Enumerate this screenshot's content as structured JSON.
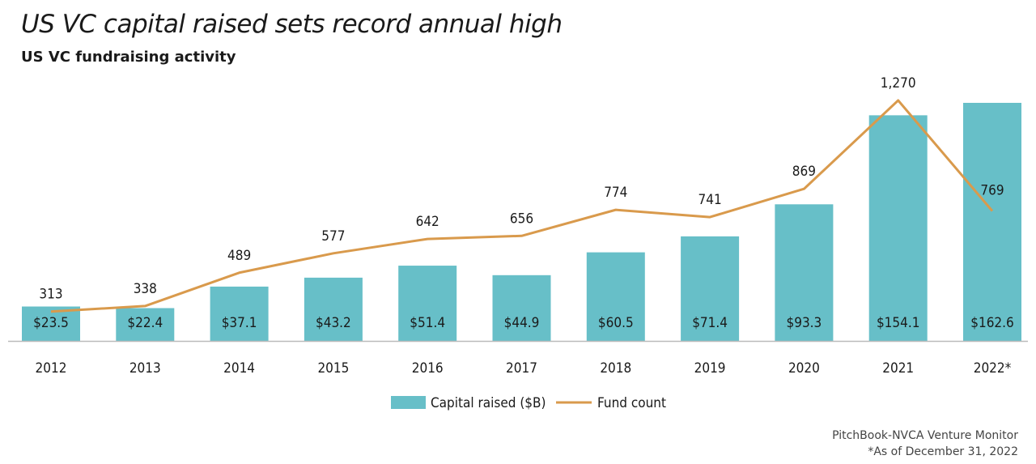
{
  "header": {
    "title": "US VC capital raised sets record annual high",
    "subtitle": "US VC fundraising activity"
  },
  "footer": {
    "source": "PitchBook-NVCA Venture Monitor",
    "note": "*As of December 31, 2022"
  },
  "colors": {
    "bar": "#67bfc8",
    "line": "#d99a4c",
    "axis": "#bbbbbb"
  },
  "chart_data": {
    "type": "bar",
    "categories": [
      "2012",
      "2013",
      "2014",
      "2015",
      "2016",
      "2017",
      "2018",
      "2019",
      "2020",
      "2021",
      "2022*"
    ],
    "series": [
      {
        "name": "Capital raised ($B)",
        "type": "bar",
        "values": [
          23.5,
          22.4,
          37.1,
          43.2,
          51.4,
          44.9,
          60.5,
          71.4,
          93.3,
          154.1,
          162.6
        ],
        "labels": [
          "$23.5",
          "$22.4",
          "$37.1",
          "$43.2",
          "$51.4",
          "$44.9",
          "$60.5",
          "$71.4",
          "$93.3",
          "$154.1",
          "$162.6"
        ],
        "ylim": [
          0,
          162.6
        ]
      },
      {
        "name": "Fund count",
        "type": "line",
        "values": [
          313,
          338,
          489,
          577,
          642,
          656,
          774,
          741,
          869,
          1270,
          769
        ],
        "labels": [
          "313",
          "338",
          "489",
          "577",
          "642",
          "656",
          "774",
          "741",
          "869",
          "1,270",
          "769"
        ],
        "ylim": [
          0,
          1270
        ]
      }
    ],
    "legend": [
      "Capital raised ($B)",
      "Fund count"
    ],
    "legend_position": "bottom-center",
    "grid": false
  }
}
